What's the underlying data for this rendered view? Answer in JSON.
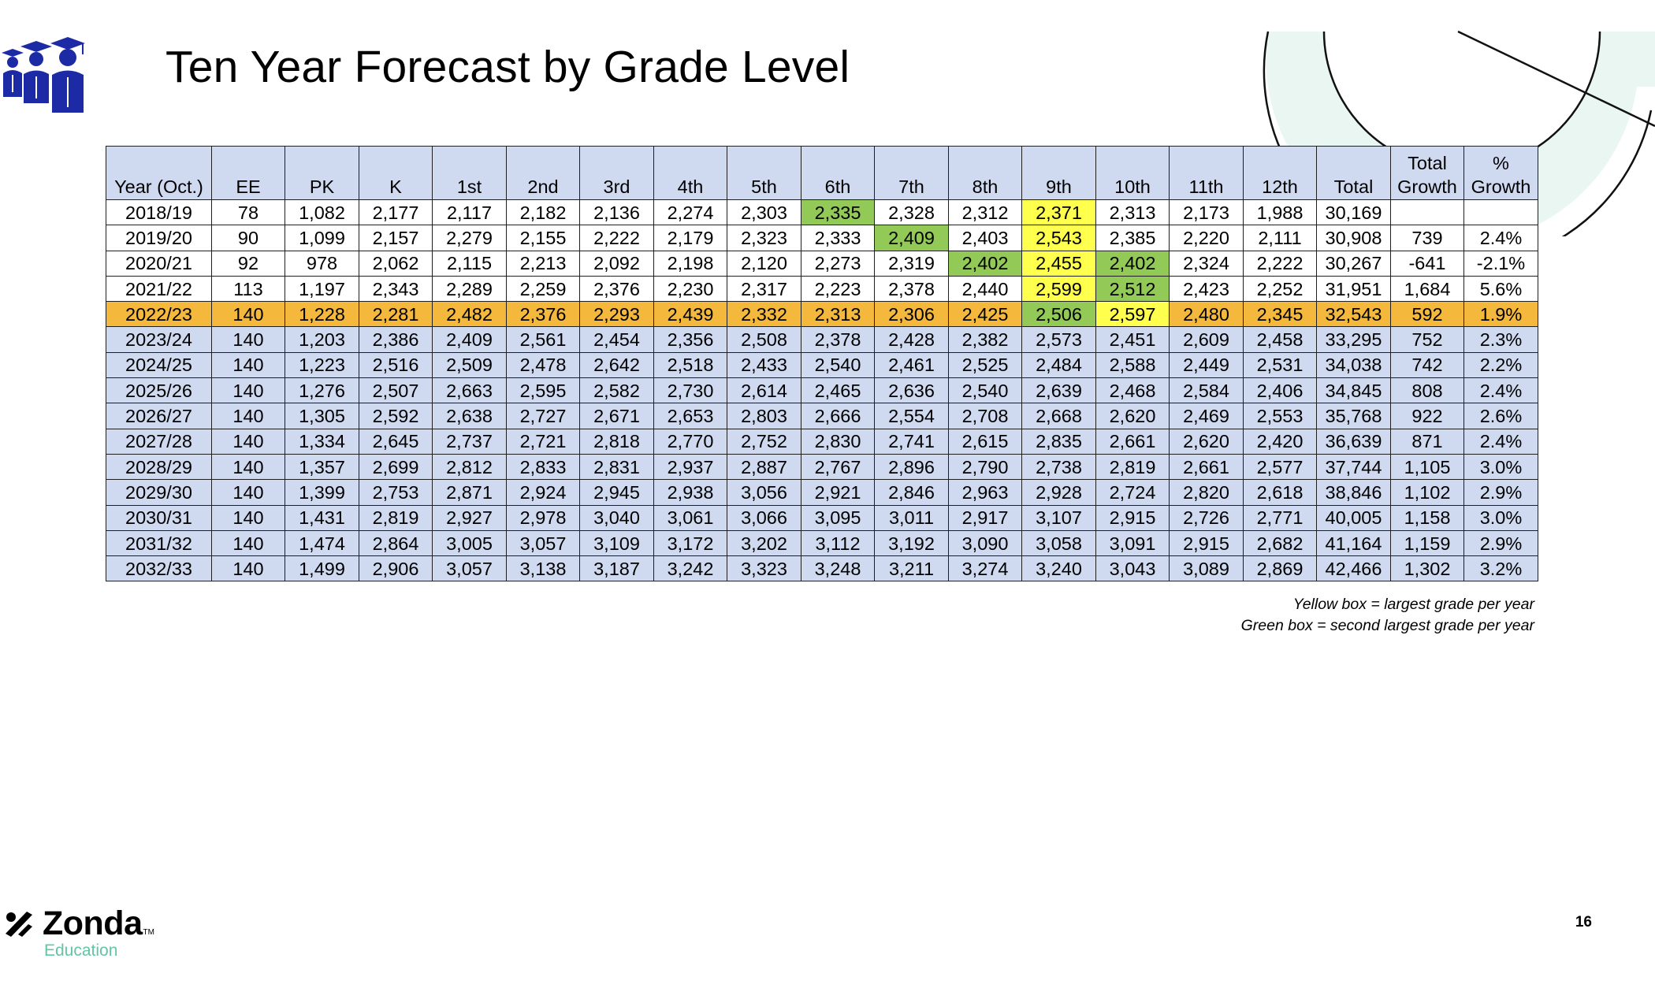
{
  "title": "Ten Year Forecast by Grade Level",
  "table": {
    "headers": [
      {
        "top": "",
        "bottom": "Year (Oct.)"
      },
      {
        "top": "",
        "bottom": "EE"
      },
      {
        "top": "",
        "bottom": "PK"
      },
      {
        "top": "",
        "bottom": "K"
      },
      {
        "top": "",
        "bottom": "1st"
      },
      {
        "top": "",
        "bottom": "2nd"
      },
      {
        "top": "",
        "bottom": "3rd"
      },
      {
        "top": "",
        "bottom": "4th"
      },
      {
        "top": "",
        "bottom": "5th"
      },
      {
        "top": "",
        "bottom": "6th"
      },
      {
        "top": "",
        "bottom": "7th"
      },
      {
        "top": "",
        "bottom": "8th"
      },
      {
        "top": "",
        "bottom": "9th"
      },
      {
        "top": "",
        "bottom": "10th"
      },
      {
        "top": "",
        "bottom": "11th"
      },
      {
        "top": "",
        "bottom": "12th"
      },
      {
        "top": "",
        "bottom": "Total"
      },
      {
        "top": "Total",
        "bottom": "Growth"
      },
      {
        "top": "%",
        "bottom": "Growth"
      }
    ],
    "rows": [
      {
        "type": "hist",
        "cells": [
          "2018/19",
          "78",
          "1,082",
          "2,177",
          "2,117",
          "2,182",
          "2,136",
          "2,274",
          "2,303",
          "2,335",
          "2,328",
          "2,312",
          "2,371",
          "2,313",
          "2,173",
          "1,988",
          "30,169",
          "",
          ""
        ],
        "yellow": [
          12
        ],
        "green": [
          9
        ]
      },
      {
        "type": "hist",
        "cells": [
          "2019/20",
          "90",
          "1,099",
          "2,157",
          "2,279",
          "2,155",
          "2,222",
          "2,179",
          "2,323",
          "2,333",
          "2,409",
          "2,403",
          "2,543",
          "2,385",
          "2,220",
          "2,111",
          "30,908",
          "739",
          "2.4%"
        ],
        "yellow": [
          12
        ],
        "green": [
          10
        ]
      },
      {
        "type": "hist",
        "cells": [
          "2020/21",
          "92",
          "978",
          "2,062",
          "2,115",
          "2,213",
          "2,092",
          "2,198",
          "2,120",
          "2,273",
          "2,319",
          "2,402",
          "2,455",
          "2,402",
          "2,324",
          "2,222",
          "30,267",
          "-641",
          "-2.1%"
        ],
        "yellow": [
          12
        ],
        "green": [
          11,
          13
        ]
      },
      {
        "type": "hist",
        "cells": [
          "2021/22",
          "113",
          "1,197",
          "2,343",
          "2,289",
          "2,259",
          "2,376",
          "2,230",
          "2,317",
          "2,223",
          "2,378",
          "2,440",
          "2,599",
          "2,512",
          "2,423",
          "2,252",
          "31,951",
          "1,684",
          "5.6%"
        ],
        "yellow": [
          12
        ],
        "green": [
          13
        ]
      },
      {
        "type": "current",
        "cells": [
          "2022/23",
          "140",
          "1,228",
          "2,281",
          "2,482",
          "2,376",
          "2,293",
          "2,439",
          "2,332",
          "2,313",
          "2,306",
          "2,425",
          "2,506",
          "2,597",
          "2,480",
          "2,345",
          "32,543",
          "592",
          "1.9%"
        ],
        "yellow": [
          13
        ],
        "green": [
          12
        ]
      },
      {
        "type": "proj",
        "cells": [
          "2023/24",
          "140",
          "1,203",
          "2,386",
          "2,409",
          "2,561",
          "2,454",
          "2,356",
          "2,508",
          "2,378",
          "2,428",
          "2,382",
          "2,573",
          "2,451",
          "2,609",
          "2,458",
          "33,295",
          "752",
          "2.3%"
        ],
        "yellow": [],
        "green": []
      },
      {
        "type": "proj",
        "cells": [
          "2024/25",
          "140",
          "1,223",
          "2,516",
          "2,509",
          "2,478",
          "2,642",
          "2,518",
          "2,433",
          "2,540",
          "2,461",
          "2,525",
          "2,484",
          "2,588",
          "2,449",
          "2,531",
          "34,038",
          "742",
          "2.2%"
        ],
        "yellow": [],
        "green": []
      },
      {
        "type": "proj",
        "cells": [
          "2025/26",
          "140",
          "1,276",
          "2,507",
          "2,663",
          "2,595",
          "2,582",
          "2,730",
          "2,614",
          "2,465",
          "2,636",
          "2,540",
          "2,639",
          "2,468",
          "2,584",
          "2,406",
          "34,845",
          "808",
          "2.4%"
        ],
        "yellow": [],
        "green": []
      },
      {
        "type": "proj",
        "cells": [
          "2026/27",
          "140",
          "1,305",
          "2,592",
          "2,638",
          "2,727",
          "2,671",
          "2,653",
          "2,803",
          "2,666",
          "2,554",
          "2,708",
          "2,668",
          "2,620",
          "2,469",
          "2,553",
          "35,768",
          "922",
          "2.6%"
        ],
        "yellow": [],
        "green": []
      },
      {
        "type": "proj",
        "cells": [
          "2027/28",
          "140",
          "1,334",
          "2,645",
          "2,737",
          "2,721",
          "2,818",
          "2,770",
          "2,752",
          "2,830",
          "2,741",
          "2,615",
          "2,835",
          "2,661",
          "2,620",
          "2,420",
          "36,639",
          "871",
          "2.4%"
        ],
        "yellow": [],
        "green": []
      },
      {
        "type": "proj",
        "cells": [
          "2028/29",
          "140",
          "1,357",
          "2,699",
          "2,812",
          "2,833",
          "2,831",
          "2,937",
          "2,887",
          "2,767",
          "2,896",
          "2,790",
          "2,738",
          "2,819",
          "2,661",
          "2,577",
          "37,744",
          "1,105",
          "3.0%"
        ],
        "yellow": [],
        "green": []
      },
      {
        "type": "proj",
        "cells": [
          "2029/30",
          "140",
          "1,399",
          "2,753",
          "2,871",
          "2,924",
          "2,945",
          "2,938",
          "3,056",
          "2,921",
          "2,846",
          "2,963",
          "2,928",
          "2,724",
          "2,820",
          "2,618",
          "38,846",
          "1,102",
          "2.9%"
        ],
        "yellow": [],
        "green": []
      },
      {
        "type": "proj",
        "cells": [
          "2030/31",
          "140",
          "1,431",
          "2,819",
          "2,927",
          "2,978",
          "3,040",
          "3,061",
          "3,066",
          "3,095",
          "3,011",
          "2,917",
          "3,107",
          "2,915",
          "2,726",
          "2,771",
          "40,005",
          "1,158",
          "3.0%"
        ],
        "yellow": [],
        "green": []
      },
      {
        "type": "proj",
        "cells": [
          "2031/32",
          "140",
          "1,474",
          "2,864",
          "3,005",
          "3,057",
          "3,109",
          "3,172",
          "3,202",
          "3,112",
          "3,192",
          "3,090",
          "3,058",
          "3,091",
          "2,915",
          "2,682",
          "41,164",
          "1,159",
          "2.9%"
        ],
        "yellow": [],
        "green": []
      },
      {
        "type": "proj",
        "cells": [
          "2032/33",
          "140",
          "1,499",
          "2,906",
          "3,057",
          "3,138",
          "3,187",
          "3,242",
          "3,323",
          "3,248",
          "3,211",
          "3,274",
          "3,240",
          "3,043",
          "3,089",
          "2,869",
          "42,466",
          "1,302",
          "3.2%"
        ],
        "yellow": [],
        "green": []
      }
    ]
  },
  "legend": {
    "yellow": "Yellow box = largest grade per year",
    "green": "Green box = second largest grade per year"
  },
  "brand": {
    "name": "Zonda",
    "tm": "TM",
    "sub": "Education"
  },
  "page_number": "16",
  "colors": {
    "header_fill": "#cfdaf0",
    "current_year_fill": "#f4b93c",
    "largest_highlight": "#ffff4d",
    "second_highlight": "#92c957",
    "logo_icon": "#1c2aa6",
    "brand_accent": "#62c6a3"
  },
  "icons": [
    "graduates-icon",
    "zonda-logo-icon"
  ]
}
